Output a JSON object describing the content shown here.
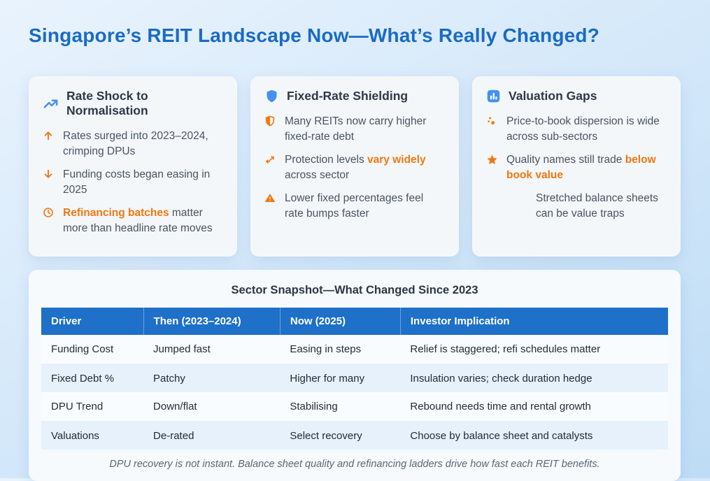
{
  "title": "Singapore’s REIT Landscape Now—What’s Really Changed?",
  "colors": {
    "title_blue": "#1a6bc5",
    "table_header_blue": "#1e70c8",
    "icon_blue": "#4292ef",
    "accent_orange": "#f2770f",
    "card_background": "#f4f7fa",
    "alt_row_blue": "#e6f1fb"
  },
  "cards": [
    {
      "title": "Rate Shock to Normalisation",
      "icon": "trend-up-icon",
      "bullets": [
        {
          "icon": "arrow-up-icon",
          "segments": [
            {
              "t": "Rates surged into 2023–2024, crimping DPUs"
            }
          ]
        },
        {
          "icon": "arrow-down-icon",
          "segments": [
            {
              "t": "Funding costs began easing in 2025"
            }
          ]
        },
        {
          "icon": "clock-icon",
          "segments": [
            {
              "t": "Refinancing batches",
              "hl": true
            },
            {
              "t": " matter more than headline rate moves"
            }
          ]
        }
      ]
    },
    {
      "title": "Fixed-Rate Shielding",
      "icon": "shield-icon",
      "bullets": [
        {
          "icon": "shield-half-icon",
          "segments": [
            {
              "t": "Many REITs now carry higher fixed-rate debt"
            }
          ]
        },
        {
          "icon": "diverge-arrows-icon",
          "segments": [
            {
              "t": "Protection levels "
            },
            {
              "t": "vary widely",
              "hl": true
            },
            {
              "t": " across sector"
            }
          ]
        },
        {
          "icon": "warning-icon",
          "segments": [
            {
              "t": "Lower fixed percentages feel rate bumps faster"
            }
          ]
        }
      ]
    },
    {
      "title": "Valuation Gaps",
      "icon": "bar-chart-icon",
      "bullets": [
        {
          "icon": "scatter-dots-icon",
          "segments": [
            {
              "t": "Price-to-book dispersion is wide across sub-sectors"
            }
          ]
        },
        {
          "icon": "star-icon",
          "segments": [
            {
              "t": "Quality names still trade "
            },
            {
              "t": "below book value",
              "hl": true
            }
          ]
        },
        {
          "icon": "none",
          "indent": true,
          "segments": [
            {
              "t": "Stretched balance sheets can be value traps"
            }
          ]
        }
      ]
    }
  ],
  "table": {
    "title": "Sector Snapshot—What Changed Since 2023",
    "headers": [
      "Driver",
      "Then (2023–2024)",
      "Now (2025)",
      "Investor Implication"
    ],
    "col_widths_pct": [
      16.3,
      21.8,
      19.2,
      42.7
    ],
    "rows": [
      [
        "Funding Cost",
        "Jumped fast",
        "Easing in steps",
        "Relief is staggered; refi schedules matter"
      ],
      [
        "Fixed Debt %",
        "Patchy",
        "Higher for many",
        "Insulation varies; check duration hedge"
      ],
      [
        "DPU Trend",
        "Down/flat",
        "Stabilising",
        "Rebound needs time and rental growth"
      ],
      [
        "Valuations",
        "De-rated",
        "Select recovery",
        "Choose by balance sheet and catalysts"
      ]
    ],
    "footnote": "DPU recovery is not instant. Balance sheet quality and refinancing ladders drive how fast each REIT benefits."
  }
}
